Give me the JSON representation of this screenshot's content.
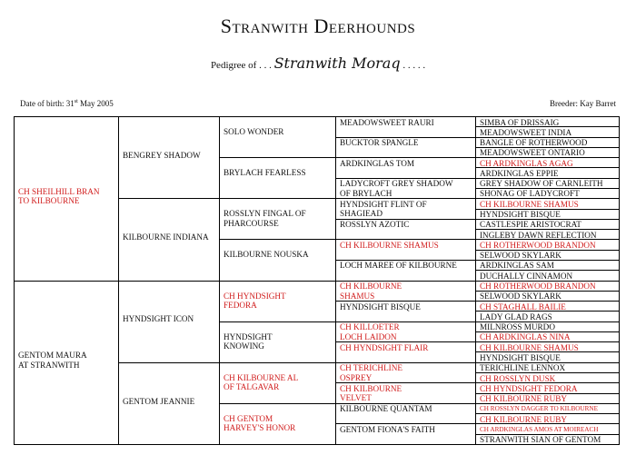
{
  "header": {
    "title": "Stranwith Deerhounds",
    "pedigree_prefix": "Pedigree of . . .",
    "dog_name": "Stranwith Moraq",
    "pedigree_suffix": ". . . . .",
    "dob_label": "Date of birth:",
    "dob_day": "31",
    "dob_suffix": "st",
    "dob_rest": "May 2005",
    "breeder_label": "Breeder:",
    "breeder_name": "Kay Barret"
  },
  "colors": {
    "champion": "#d01b1b",
    "text": "#111111"
  },
  "pedigree": {
    "gen1": [
      {
        "name": "CH SHEILHILL BRAN TO KILBOURNE",
        "champion": true
      },
      {
        "name": "GENTOM MAURA AT STRANWITH",
        "champion": false
      }
    ],
    "gen2": [
      {
        "name": "BENGREY SHADOW",
        "champion": false
      },
      {
        "name": "KILBOURNE INDIANA",
        "champion": false
      },
      {
        "name": "HYNDSIGHT ICON",
        "champion": false
      },
      {
        "name": "GENTOM JEANNIE",
        "champion": false
      }
    ],
    "gen3": [
      {
        "name": "SOLO WONDER",
        "champion": false
      },
      {
        "name": "BRYLACH FEARLESS",
        "champion": false
      },
      {
        "name": "ROSSLYN FINGAL OF PHARCOURSE",
        "champion": false
      },
      {
        "name": "KILBOURNE NOUSKA",
        "champion": false
      },
      {
        "name": "CH HYNDSIGHT FEDORA",
        "champion": true
      },
      {
        "name": "HYNDSIGHT KNOWING",
        "champion": false
      },
      {
        "name": "CH KILBOURNE AL OF TALGAVAR",
        "champion": true
      },
      {
        "name": "CH GENTOM HARVEY'S HONOR",
        "champion": true
      }
    ],
    "gen4": [
      {
        "name": "MEADOWSWEET RAURI",
        "champion": false
      },
      {
        "name": "BUCKTOR SPANGLE",
        "champion": false
      },
      {
        "name": "ARDKINGLAS TOM",
        "champion": false
      },
      {
        "name": "LADYCROFT GREY SHADOW OF BRYLACH",
        "champion": false
      },
      {
        "name": "HYNDSIGHT FLINT OF SHAGIEAD",
        "champion": false
      },
      {
        "name": "ROSSLYN AZOTIC",
        "champion": false
      },
      {
        "name": "CH KILBOURNE SHAMUS",
        "champion": true
      },
      {
        "name": "LOCH MAREE OF KILBOURNE",
        "champion": false
      },
      {
        "name": "CH KILBOURNE SHAMUS",
        "champion": true
      },
      {
        "name": "HYNDSIGHT BISQUE",
        "champion": false
      },
      {
        "name": "CH KILLOETER LOCH LAIDON",
        "champion": true
      },
      {
        "name": "CH HYNDSIGHT FLAIR",
        "champion": true
      },
      {
        "name": "CH TERICHLINE OSPREY",
        "champion": true
      },
      {
        "name": "CH KILBOURNE VELVET",
        "champion": true
      },
      {
        "name": "KILBOURNE QUANTAM",
        "champion": false
      },
      {
        "name": "GENTOM FIONA'S FAITH",
        "champion": false
      }
    ],
    "gen5": [
      {
        "name": "SIMBA OF DRISSAIG",
        "champion": false
      },
      {
        "name": "MEADOWSWEET INDIA",
        "champion": false
      },
      {
        "name": "BANGLE OF ROTHERWOOD",
        "champion": false
      },
      {
        "name": "MEADOWSWEET ONTARIO",
        "champion": false
      },
      {
        "name": "CH ARDKINGLAS AGAG",
        "champion": true
      },
      {
        "name": "ARDKINGLAS EPPIE",
        "champion": false
      },
      {
        "name": "GREY SHADOW OF CARNLEITH",
        "champion": false
      },
      {
        "name": "SHONAG OF LADYCROFT",
        "champion": false
      },
      {
        "name": "CH KILBOURNE SHAMUS",
        "champion": true
      },
      {
        "name": "HYNDSIGHT BISQUE",
        "champion": false
      },
      {
        "name": "CASTLESPIE ARISTOCRAT",
        "champion": false
      },
      {
        "name": "INGLEBY DAWN REFLECTION",
        "champion": false
      },
      {
        "name": "CH ROTHERWOOD BRANDON",
        "champion": true
      },
      {
        "name": "SELWOOD SKYLARK",
        "champion": false
      },
      {
        "name": "ARDKINGLAS SAM",
        "champion": false
      },
      {
        "name": "DUCHALLY CINNAMON",
        "champion": false
      },
      {
        "name": "CH ROTHERWOOD BRANDON",
        "champion": true
      },
      {
        "name": "SELWOOD SKYLARK",
        "champion": false
      },
      {
        "name": "CH STAGHALL BAILIE",
        "champion": true
      },
      {
        "name": "LADY GLAD RAGS",
        "champion": false
      },
      {
        "name": "MILNROSS MURDO",
        "champion": false
      },
      {
        "name": "CH ARDKINGLAS NINA",
        "champion": true
      },
      {
        "name": "CH KILBOURNE SHAMUS",
        "champion": true
      },
      {
        "name": "HYNDSIGHT BISQUE",
        "champion": false
      },
      {
        "name": "TERICHLINE LENNOX",
        "champion": false
      },
      {
        "name": "CH ROSSLYN DUSK",
        "champion": true
      },
      {
        "name": "CH HYNDSIGHT FEDORA",
        "champion": true
      },
      {
        "name": "CH KILBOURNE RUBY",
        "champion": true
      },
      {
        "name": "CH ROSSLYN DAGGER TO KILBOURNE",
        "champion": true
      },
      {
        "name": "CH KILBOURNE RUBY",
        "champion": true
      },
      {
        "name": "CH ARDKINGLAS AMOS AT MOIREACH",
        "champion": true
      },
      {
        "name": "STRANWITH SIAN OF GENTOM",
        "champion": false
      }
    ]
  }
}
